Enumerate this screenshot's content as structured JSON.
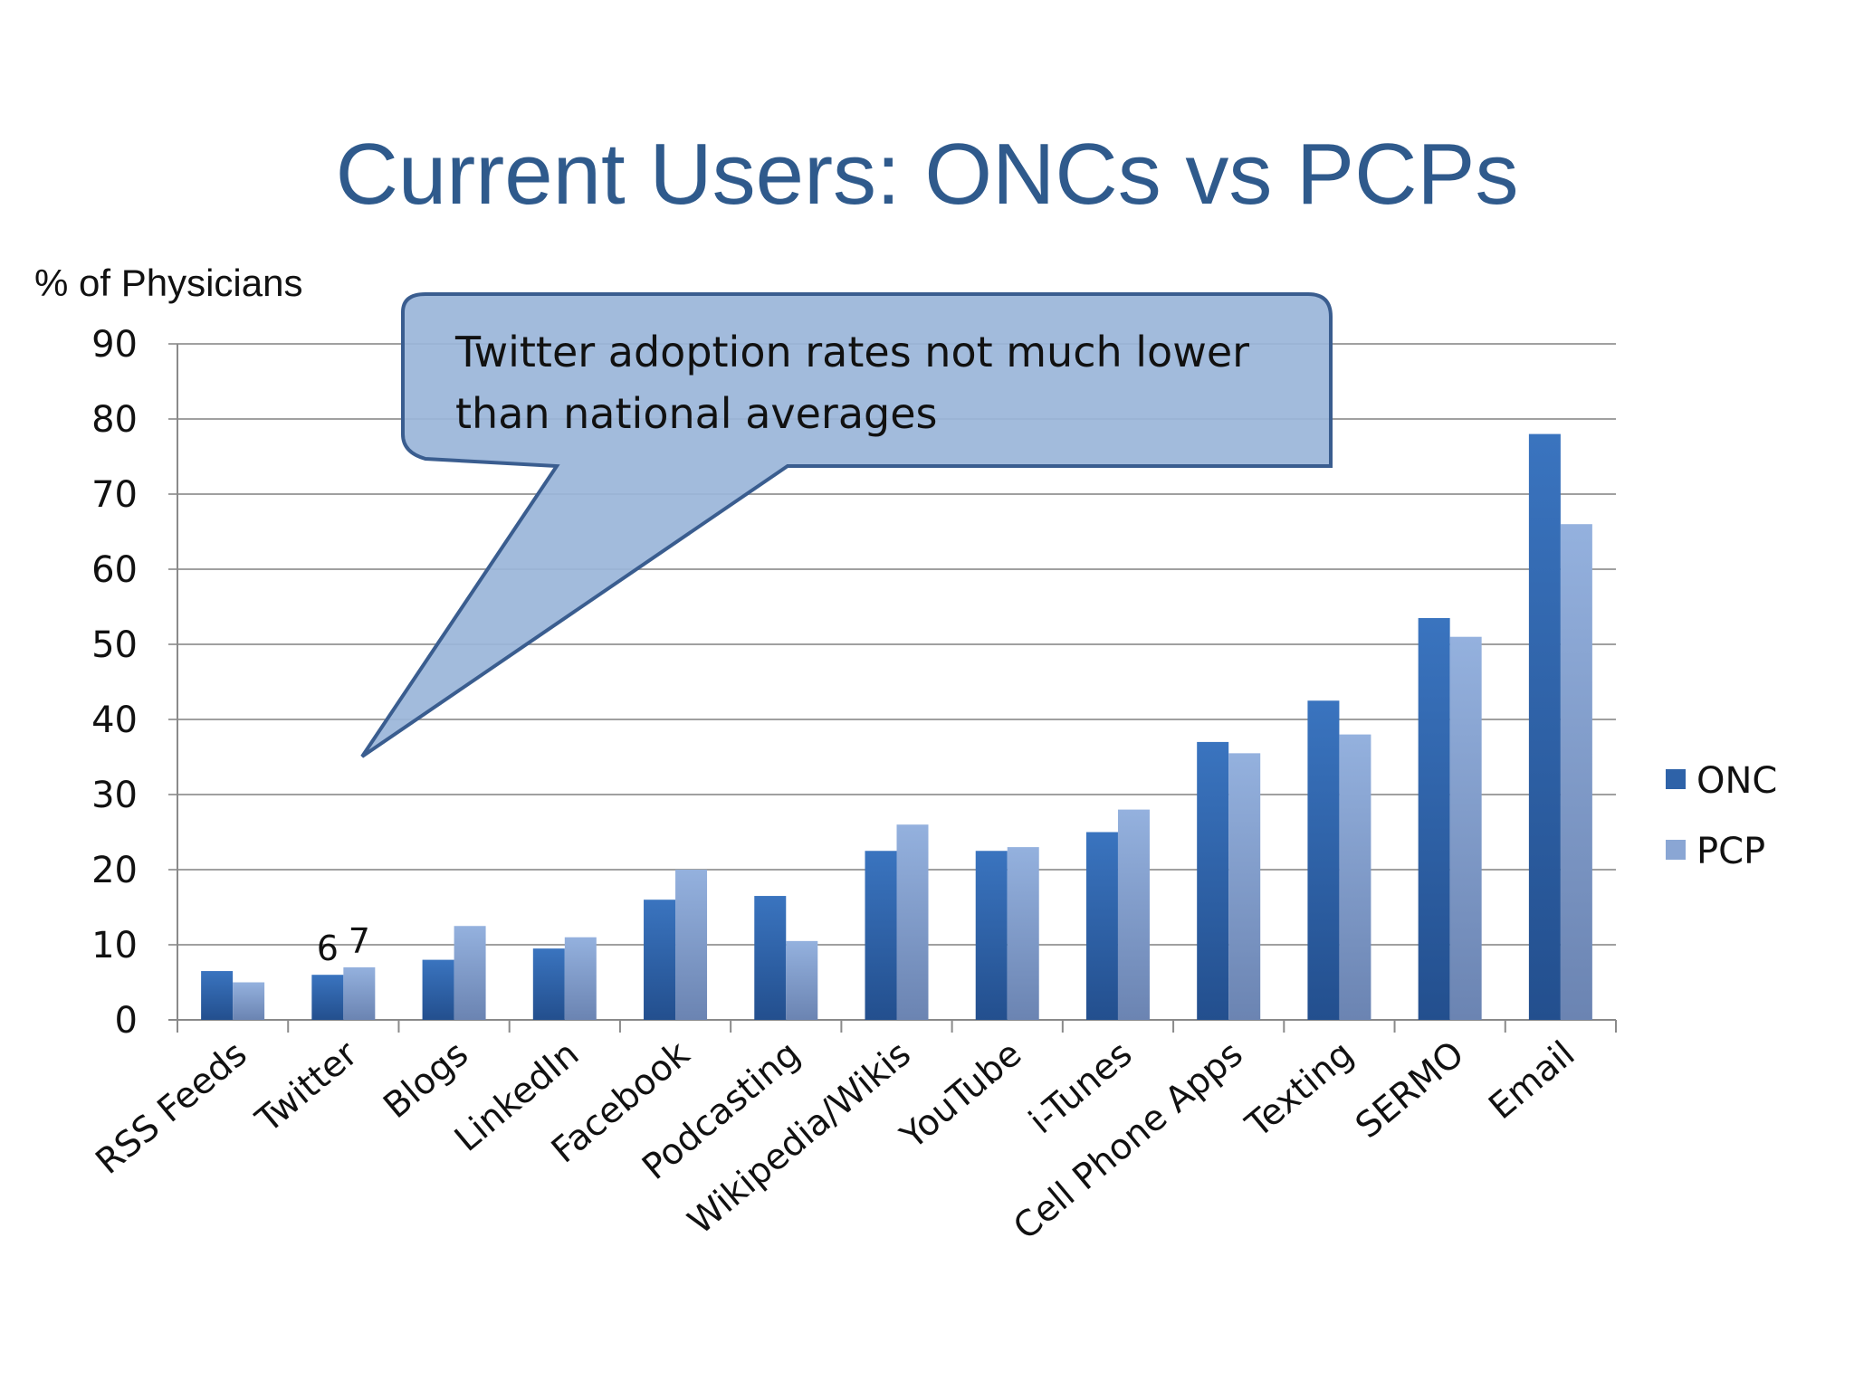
{
  "slide": {
    "title": "Current Users: ONCs vs PCPs"
  },
  "callout": {
    "line1": "Twitter adoption rates not much lower",
    "line2": "than national averages"
  },
  "colors": {
    "title": "#2f5a8c",
    "onc": "#2e62a8",
    "pcp": "#8aa6d4",
    "callout_fill": "#9ab5d9",
    "callout_stroke": "#3a5d8f",
    "grid": "#9a9a9a",
    "text": "#1a1a1a"
  },
  "chart_data": {
    "type": "bar",
    "ylabel": "% of Physicians",
    "ylim": [
      0,
      90
    ],
    "yticks": [
      0,
      10,
      20,
      30,
      40,
      50,
      60,
      70,
      80,
      90
    ],
    "grid": true,
    "legend_position": "right",
    "categories": [
      "RSS Feeds",
      "Twitter",
      "Blogs",
      "LinkedIn",
      "Facebook",
      "Podcasting",
      "Wikipedia/Wikis",
      "YouTube",
      "i-Tunes",
      "Cell Phone Apps",
      "Texting",
      "SERMO",
      "Email"
    ],
    "series": [
      {
        "name": "ONC",
        "values": [
          6.5,
          6,
          8,
          9.5,
          16,
          16.5,
          22.5,
          22.5,
          25,
          37,
          42.5,
          53.5,
          78
        ]
      },
      {
        "name": "PCP",
        "values": [
          5,
          7,
          12.5,
          11,
          20,
          10.5,
          26,
          23,
          28,
          35.5,
          38,
          51,
          66
        ]
      }
    ],
    "data_labels": [
      {
        "category": "Twitter",
        "series": "ONC",
        "text": "6"
      },
      {
        "category": "Twitter",
        "series": "PCP",
        "text": "7"
      }
    ]
  }
}
